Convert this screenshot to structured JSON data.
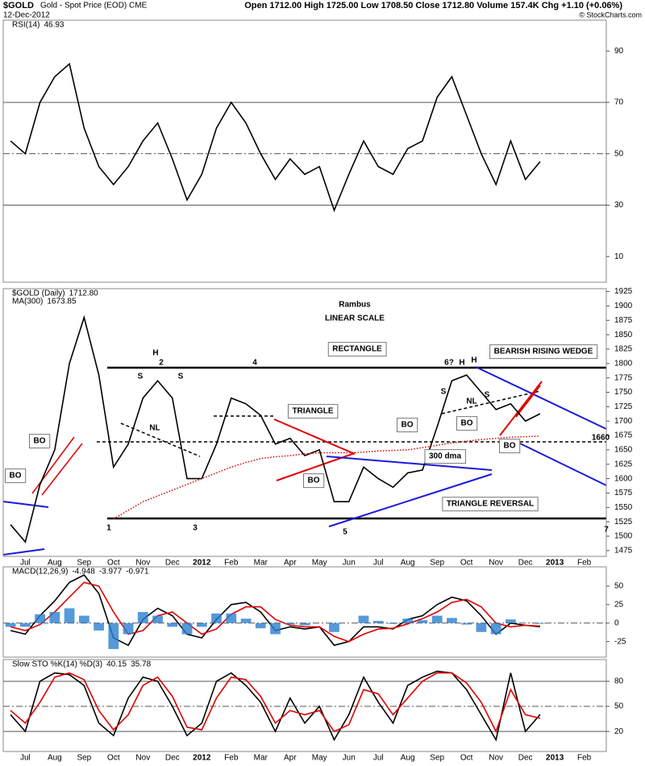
{
  "header": {
    "symbol": "$GOLD",
    "name": "Gold - Spot Price (EOD) CME",
    "date": "12-Dec-2012",
    "quote": "Open 1712.00 High 1725.00 Low 1708.50 Close 1712.80 Volume 157.4K Chg +1.10 (+0.06%)",
    "credit": "© StockCharts.com"
  },
  "chart_data": [
    {
      "type": "line",
      "title": "RSI(14)",
      "ylim": [
        0,
        102
      ],
      "yticks": [
        10,
        30,
        50,
        70,
        90
      ],
      "levels": [
        30,
        50,
        70
      ],
      "series": [
        {
          "color": "#000000",
          "values": [
            55,
            50,
            70,
            80,
            85,
            60,
            45,
            38,
            45,
            55,
            62,
            48,
            32,
            42,
            60,
            70,
            62,
            50,
            40,
            48,
            42,
            45,
            28,
            42,
            55,
            45,
            42,
            52,
            55,
            72,
            80,
            65,
            50,
            38,
            55,
            40,
            46.93,
            null,
            null,
            null,
            null
          ]
        }
      ]
    },
    {
      "type": "line",
      "title": "$GOLD (Daily)",
      "ylim": [
        1465,
        1930
      ],
      "yticks": [
        1475,
        1500,
        1525,
        1550,
        1575,
        1600,
        1625,
        1650,
        1675,
        1700,
        1725,
        1750,
        1775,
        1800,
        1825,
        1850,
        1875,
        1900,
        1925
      ],
      "categories": [
        null,
        "Jul",
        null,
        "Aug",
        null,
        "Sep",
        null,
        "Oct",
        null,
        "Nov",
        null,
        "Dec",
        null,
        "2012",
        null,
        "Feb",
        null,
        "Mar",
        null,
        "Apr",
        null,
        "May",
        null,
        "Jun",
        null,
        "Jul",
        null,
        "Aug",
        null,
        "Sep",
        null,
        "Oct",
        null,
        "Nov",
        null,
        "Dec",
        null,
        "2013",
        null,
        "Feb",
        null
      ],
      "series": [
        {
          "color": "#000000",
          "values": [
            1520,
            1490,
            1590,
            1650,
            1800,
            1880,
            1780,
            1620,
            1660,
            1740,
            1770,
            1740,
            1600,
            1600,
            1660,
            1740,
            1730,
            1710,
            1660,
            1670,
            1640,
            1650,
            1560,
            1560,
            1620,
            1600,
            1585,
            1610,
            1615,
            1690,
            1770,
            1780,
            1750,
            1720,
            1730,
            1700,
            1712.8,
            null,
            null,
            null,
            null
          ],
          "value_labels": [
            null,
            null,
            null,
            null,
            null,
            null,
            null,
            null,
            null,
            null,
            null,
            null,
            null,
            null,
            null,
            null,
            null,
            null,
            null,
            null,
            null,
            null,
            null,
            null,
            null,
            null,
            null,
            null,
            null,
            null,
            null,
            null,
            null,
            null,
            null,
            null,
            "1712.80",
            null,
            null,
            null,
            null
          ]
        },
        {
          "name": "MA(300)",
          "color": "#e00000",
          "dotted": true,
          "values": [
            null,
            null,
            null,
            null,
            null,
            null,
            null,
            1530,
            1545,
            1560,
            1570,
            1580,
            1590,
            1600,
            1610,
            1620,
            1628,
            1635,
            1638,
            1640,
            1643,
            1645,
            1645,
            1645,
            1646,
            1648,
            1649,
            1650,
            1654,
            1658,
            1662,
            1665,
            1668,
            1670,
            1672,
            1673,
            1673.85,
            null,
            null,
            null,
            null
          ]
        }
      ],
      "annotations": [
        {
          "text": "Rambus",
          "color": "#000000"
        },
        {
          "text": "LINEAR SCALE",
          "color": "#000000"
        },
        {
          "text": "RECTANGLE",
          "color": "#000000"
        },
        {
          "text": "TRIANGLE",
          "color": "#e00000"
        },
        {
          "text": "BO",
          "color": "#1a1adc"
        },
        {
          "text": "BO",
          "color": "#1a1adc"
        },
        {
          "text": "BO",
          "color": "#1a1adc"
        },
        {
          "text": "BO",
          "color": "#1a1adc"
        },
        {
          "text": "BO",
          "color": "#1a1adc"
        },
        {
          "text": "BO",
          "color": "#1a1adc"
        },
        {
          "text": "300 dma",
          "color": "#e00000"
        },
        {
          "text": "H",
          "color": "#000000"
        },
        {
          "text": "2",
          "color": "#1a1adc"
        },
        {
          "text": "S",
          "color": "#000000"
        },
        {
          "text": "S",
          "color": "#000000"
        },
        {
          "text": "NL",
          "color": "#000000"
        },
        {
          "text": "4",
          "color": "#1a1adc"
        },
        {
          "text": "6?",
          "color": "#1a1adc"
        },
        {
          "text": "H",
          "color": "#000000"
        },
        {
          "text": "H",
          "color": "#000000"
        },
        {
          "text": "S",
          "color": "#000000"
        },
        {
          "text": "S",
          "color": "#000000"
        },
        {
          "text": "NL",
          "color": "#000000"
        },
        {
          "text": "1",
          "color": "#1a1adc"
        },
        {
          "text": "3",
          "color": "#1a1adc"
        },
        {
          "text": "5",
          "color": "#1a1adc"
        },
        {
          "text": "7",
          "color": "#1a1adc"
        },
        {
          "text": "TRIANGLE REVERSAL",
          "color": "#1a1adc"
        },
        {
          "text": "BEARISH RISING WEDGE",
          "color": "#e00000"
        },
        {
          "text": "1660",
          "color": "#000000"
        }
      ]
    },
    {
      "type": "macd",
      "title": "MACD(12,26,9)",
      "ylim": [
        -46,
        76
      ],
      "yticks": [
        -25,
        0,
        25,
        50
      ],
      "levels": [
        0
      ],
      "series": [
        {
          "color": "#000000",
          "values": [
            -10,
            -15,
            10,
            30,
            55,
            65,
            40,
            -20,
            -30,
            5,
            20,
            10,
            -15,
            -20,
            5,
            25,
            28,
            15,
            -10,
            -5,
            -8,
            -5,
            -30,
            -25,
            -5,
            -5,
            -8,
            5,
            10,
            25,
            35,
            30,
            10,
            -15,
            0,
            -3,
            -4.948,
            null,
            null,
            null,
            null
          ]
        },
        {
          "color": "#e00000",
          "values": [
            -5,
            -10,
            -2,
            15,
            35,
            55,
            50,
            15,
            -15,
            -10,
            10,
            15,
            0,
            -15,
            -8,
            12,
            22,
            22,
            5,
            -3,
            -5,
            -5,
            -18,
            -25,
            -15,
            -8,
            -7,
            -1,
            6,
            15,
            28,
            32,
            22,
            0,
            -5,
            -3,
            -3.977,
            null,
            null,
            null,
            null
          ]
        },
        {
          "color": "#2a7fd0",
          "bars": true,
          "values": [
            -5,
            -5,
            12,
            15,
            20,
            10,
            -10,
            -35,
            -15,
            15,
            10,
            -5,
            -15,
            -5,
            13,
            13,
            6,
            -7,
            -15,
            -2,
            -3,
            0,
            -12,
            0,
            10,
            3,
            -1,
            6,
            4,
            10,
            7,
            -2,
            -12,
            -15,
            5,
            0,
            -0.971,
            null,
            null,
            null,
            null
          ]
        }
      ]
    },
    {
      "type": "line",
      "title": "Slow STO %K(14) %D(3)",
      "ylim": [
        -4,
        106
      ],
      "yticks": [
        20,
        50,
        80
      ],
      "levels": [
        20,
        50,
        80
      ],
      "categories": [
        null,
        "Jul",
        null,
        "Aug",
        null,
        "Sep",
        null,
        "Oct",
        null,
        "Nov",
        null,
        "Dec",
        null,
        "2012",
        null,
        "Feb",
        null,
        "Mar",
        null,
        "Apr",
        null,
        "May",
        null,
        "Jun",
        null,
        "Jul",
        null,
        "Aug",
        null,
        "Sep",
        null,
        "Oct",
        null,
        "Nov",
        null,
        "Dec",
        null,
        "2013",
        null,
        "Feb",
        null
      ],
      "series": [
        {
          "color": "#000000",
          "values": [
            40,
            20,
            80,
            90,
            88,
            75,
            30,
            15,
            60,
            85,
            80,
            50,
            15,
            30,
            80,
            90,
            75,
            55,
            20,
            60,
            30,
            50,
            10,
            40,
            85,
            55,
            30,
            75,
            85,
            92,
            90,
            70,
            40,
            10,
            90,
            20,
            40.15,
            null,
            null,
            null,
            null
          ]
        },
        {
          "color": "#e00000",
          "values": [
            45,
            30,
            55,
            85,
            90,
            82,
            45,
            22,
            40,
            75,
            85,
            62,
            25,
            22,
            60,
            85,
            82,
            62,
            30,
            45,
            40,
            45,
            20,
            28,
            70,
            65,
            40,
            60,
            80,
            90,
            90,
            78,
            55,
            20,
            70,
            40,
            35.78,
            null,
            null,
            null,
            null
          ]
        }
      ]
    }
  ]
}
